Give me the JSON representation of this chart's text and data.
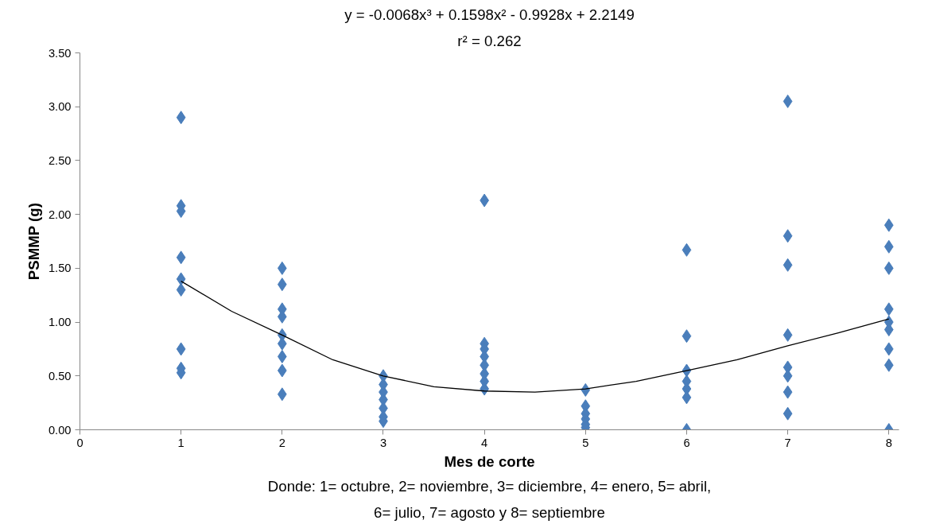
{
  "chart_data": {
    "type": "scatter",
    "title": "y = -0.0068x³ + 0.1598x² - 0.9928x + 2.2149",
    "subtitle": "r² = 0.262",
    "xlabel": "Mes de corte",
    "ylabel": "PSMMP (g)",
    "annotations": [
      "Donde: 1= octubre, 2= noviembre, 3= diciembre, 4= enero, 5= abril,",
      "6= julio, 7= agosto y 8= septiembre"
    ],
    "xlim": [
      0,
      8.1
    ],
    "ylim": [
      0,
      3.5
    ],
    "xticks": [
      0,
      1,
      2,
      3,
      4,
      5,
      6,
      7,
      8
    ],
    "yticks": [
      {
        "value": 0,
        "label": "0.00"
      },
      {
        "value": 0.5,
        "label": "0.50"
      },
      {
        "value": 1,
        "label": "1.00"
      },
      {
        "value": 1.5,
        "label": "1.50"
      },
      {
        "value": 2,
        "label": "2.00"
      },
      {
        "value": 2.5,
        "label": "2.50"
      },
      {
        "value": 3,
        "label": "3.00"
      },
      {
        "value": 3.5,
        "label": "3.50"
      }
    ],
    "grid": false,
    "marker": "diamond",
    "series": [
      {
        "color": "#4a7ebb",
        "x": [
          1,
          1,
          1,
          1,
          1,
          1,
          1,
          1,
          1,
          2,
          2,
          2,
          2,
          2,
          2,
          2,
          2,
          2,
          3,
          3,
          3,
          3,
          3,
          3,
          3,
          4,
          4,
          4,
          4,
          4,
          4,
          4,
          4,
          5,
          5,
          5,
          5,
          5,
          5,
          6,
          6,
          6,
          6,
          6,
          6,
          6,
          7,
          7,
          7,
          7,
          7,
          7,
          7,
          7,
          8,
          8,
          8,
          8,
          8,
          8,
          8,
          8,
          8
        ],
        "values": [
          2.9,
          2.08,
          2.03,
          1.6,
          1.4,
          1.3,
          0.75,
          0.57,
          0.53,
          1.5,
          1.35,
          1.12,
          1.05,
          0.88,
          0.8,
          0.68,
          0.55,
          0.33,
          0.5,
          0.42,
          0.35,
          0.28,
          0.2,
          0.12,
          0.08,
          2.13,
          0.8,
          0.75,
          0.68,
          0.6,
          0.52,
          0.45,
          0.38,
          0.37,
          0.22,
          0.15,
          0.1,
          0.05,
          0.02,
          1.67,
          0.87,
          0.55,
          0.45,
          0.38,
          0.3,
          0.0,
          3.05,
          1.8,
          1.53,
          0.88,
          0.58,
          0.5,
          0.35,
          0.15,
          1.9,
          1.7,
          1.5,
          1.12,
          1.0,
          0.93,
          0.75,
          0.6,
          0.0
        ]
      },
      {
        "type": "line",
        "marker": "none",
        "color": "#000000",
        "x": [
          1,
          1.5,
          2,
          2.5,
          3,
          3.5,
          4,
          4.5,
          5,
          5.5,
          6,
          6.5,
          7,
          7.5,
          8
        ],
        "values": [
          1.38,
          1.1,
          0.88,
          0.65,
          0.5,
          0.4,
          0.36,
          0.35,
          0.38,
          0.45,
          0.55,
          0.65,
          0.78,
          0.9,
          1.03
        ]
      }
    ]
  }
}
